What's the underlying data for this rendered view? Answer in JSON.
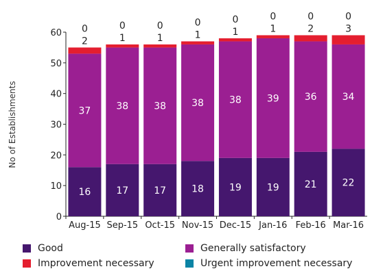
{
  "chart_data": {
    "type": "bar",
    "stacked": true,
    "categories": [
      "Aug-15",
      "Sep-15",
      "Oct-15",
      "Nov-15",
      "Dec-15",
      "Jan-16",
      "Feb-16",
      "Mar-16"
    ],
    "series": [
      {
        "name": "Good",
        "color": "#45176e",
        "values": [
          16,
          17,
          17,
          18,
          19,
          19,
          21,
          22
        ]
      },
      {
        "name": "Generally satisfactory",
        "color": "#9b1f92",
        "values": [
          37,
          38,
          38,
          38,
          38,
          39,
          36,
          34
        ]
      },
      {
        "name": "Improvement necessary",
        "color": "#e41e2f",
        "values": [
          2,
          1,
          1,
          1,
          1,
          1,
          2,
          3
        ]
      },
      {
        "name": "Urgent improvement necessary",
        "color": "#0b84a5",
        "values": [
          0,
          0,
          0,
          0,
          0,
          0,
          0,
          0
        ]
      }
    ],
    "ylabel": "No of Establishments",
    "ylim": [
      0,
      60
    ],
    "yticks": [
      0,
      10,
      20,
      30,
      40,
      50,
      60
    ],
    "grid": false,
    "legend_position": "bottom"
  },
  "legend": {
    "good": "Good",
    "generally_satisfactory": "Generally satisfactory",
    "improvement_necessary": "Improvement necessary",
    "urgent_improvement_necessary": "Urgent improvement necessary"
  }
}
